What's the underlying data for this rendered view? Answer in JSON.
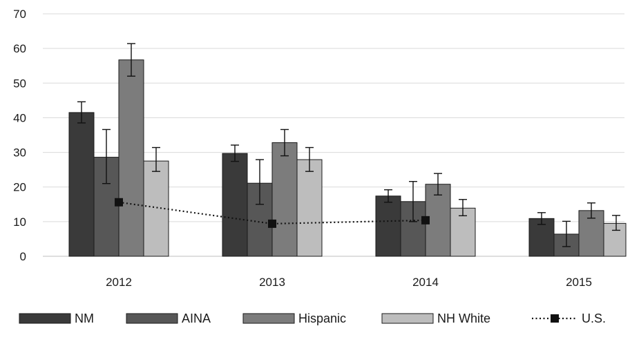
{
  "chart_data": {
    "type": "bar",
    "title": "",
    "xlabel": "",
    "ylabel": "",
    "ylim": [
      0,
      70
    ],
    "yticks": [
      0,
      10,
      20,
      30,
      40,
      50,
      60,
      70
    ],
    "grid": true,
    "legend_position": "bottom",
    "categories": [
      "2012",
      "2013",
      "2014",
      "2015"
    ],
    "series": [
      {
        "name": "NM",
        "color": "#3a3a3a",
        "values": [
          41.5,
          29.7,
          17.4,
          10.9
        ],
        "error_low": [
          38.5,
          27.4,
          15.6,
          9.2
        ],
        "error_high": [
          44.6,
          32.1,
          19.2,
          12.6
        ]
      },
      {
        "name": "AINA",
        "color": "#575757",
        "values": [
          28.6,
          21.1,
          15.8,
          6.4
        ],
        "error_low": [
          21.0,
          15.0,
          10.0,
          2.8
        ],
        "error_high": [
          36.6,
          27.9,
          21.6,
          10.1
        ]
      },
      {
        "name": "Hispanic",
        "color": "#7c7c7c",
        "values": [
          56.7,
          32.8,
          20.8,
          13.2
        ],
        "error_low": [
          52.0,
          29.0,
          17.7,
          11.0
        ],
        "error_high": [
          61.4,
          36.6,
          23.9,
          15.4
        ]
      },
      {
        "name": "NH White",
        "color": "#bdbdbd",
        "values": [
          27.5,
          27.9,
          13.9,
          9.5
        ],
        "error_low": [
          24.5,
          24.5,
          11.7,
          7.5
        ],
        "error_high": [
          31.4,
          31.4,
          16.4,
          11.8
        ]
      }
    ],
    "line_series": [
      {
        "name": "U.S.",
        "color": "#111111",
        "style": "dotted",
        "marker": "square",
        "values": [
          15.6,
          9.4,
          10.4,
          null
        ]
      }
    ]
  }
}
